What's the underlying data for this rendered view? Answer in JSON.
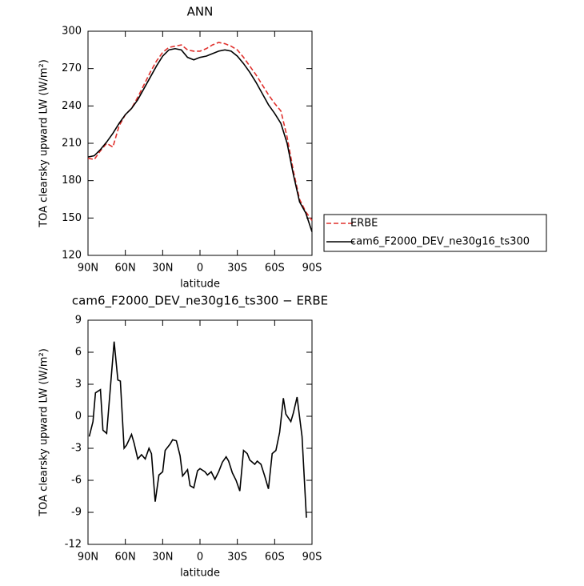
{
  "chart_data": [
    {
      "type": "line",
      "title": "ANN",
      "xlabel": "latitude",
      "ylabel": "TOA clearsky upward LW (W/m²)",
      "x": [
        90,
        85,
        80,
        75,
        70,
        65,
        60,
        55,
        50,
        45,
        40,
        35,
        30,
        25,
        20,
        15,
        10,
        5,
        0,
        -5,
        -10,
        -15,
        -20,
        -25,
        -30,
        -35,
        -40,
        -45,
        -50,
        -55,
        -60,
        -65,
        -70,
        -75,
        -80,
        -85,
        -90
      ],
      "series": [
        {
          "name": "ERBE",
          "color": "#e0302c",
          "dash": true,
          "values": [
            198,
            197,
            204,
            210,
            207,
            224,
            233,
            238,
            247,
            257,
            267,
            276,
            283,
            287,
            288,
            289,
            285,
            284,
            284,
            286,
            289,
            291,
            290,
            288,
            285,
            279,
            272,
            265,
            257,
            249,
            242,
            236,
            215,
            188,
            165,
            155,
            148
          ]
        },
        {
          "name": "cam6_F2000_DEV_ne30g16_ts300",
          "color": "#000000",
          "dash": false,
          "values": [
            199,
            200,
            205,
            211,
            218,
            226,
            233,
            238,
            245,
            254,
            263,
            272,
            280,
            285,
            286,
            285,
            279,
            277,
            279,
            280,
            282,
            284,
            285,
            284,
            280,
            274,
            267,
            259,
            250,
            241,
            234,
            226,
            210,
            185,
            163,
            154,
            139
          ]
        }
      ],
      "xlim": [
        90,
        -90
      ],
      "xticks": [
        {
          "value": 90,
          "label": "90N"
        },
        {
          "value": 60,
          "label": "60N"
        },
        {
          "value": 30,
          "label": "30N"
        },
        0,
        {
          "value": -30,
          "label": "30S"
        },
        {
          "value": -60,
          "label": "60S"
        },
        {
          "value": -90,
          "label": "90S"
        }
      ],
      "ylim": [
        120,
        300
      ],
      "yticks": [
        120,
        150,
        180,
        210,
        240,
        270,
        300
      ],
      "legend": "right"
    },
    {
      "type": "line",
      "title": "cam6_F2000_DEV_ne30g16_ts300 − ERBE",
      "xlabel": "latitude",
      "ylabel": "TOA clearsky upward LW (W/m²)",
      "x": [
        89,
        86,
        84,
        80,
        78,
        75,
        69,
        66,
        64,
        61,
        59,
        55,
        53,
        50,
        47,
        44,
        41,
        39,
        36,
        33,
        30,
        28,
        24,
        22,
        19,
        16,
        14,
        10,
        8,
        5,
        2,
        0,
        -4,
        -6,
        -9,
        -12,
        -15,
        -18,
        -21,
        -23,
        -26,
        -29,
        -32,
        -35,
        -38,
        -40,
        -44,
        -46,
        -49,
        -52,
        -55,
        -58,
        -61,
        -64,
        -67,
        -69,
        -73,
        -75,
        -78,
        -82,
        -85.5
      ],
      "series": [
        {
          "color": "#000000",
          "dash": false,
          "values": [
            -1.9,
            -0.5,
            2.2,
            2.5,
            -1.3,
            -1.6,
            7.0,
            3.4,
            3.3,
            -3.0,
            -2.7,
            -1.7,
            -2.5,
            -4.0,
            -3.6,
            -4.0,
            -3.0,
            -3.5,
            -8.0,
            -5.5,
            -5.2,
            -3.2,
            -2.6,
            -2.2,
            -2.3,
            -3.7,
            -5.6,
            -5.0,
            -6.5,
            -6.7,
            -5.1,
            -4.9,
            -5.2,
            -5.5,
            -5.2,
            -5.9,
            -5.2,
            -4.3,
            -3.8,
            -4.2,
            -5.3,
            -6.0,
            -7.0,
            -3.2,
            -3.5,
            -4.1,
            -4.5,
            -4.2,
            -4.5,
            -5.6,
            -6.8,
            -3.5,
            -3.2,
            -1.5,
            1.7,
            0.2,
            -0.5,
            0.3,
            1.8,
            -1.9,
            -9.5
          ]
        }
      ],
      "xlim": [
        90,
        -90
      ],
      "xticks": [
        {
          "value": 90,
          "label": "90N"
        },
        {
          "value": 60,
          "label": "60N"
        },
        {
          "value": 30,
          "label": "30N"
        },
        0,
        {
          "value": -30,
          "label": "30S"
        },
        {
          "value": -60,
          "label": "60S"
        },
        {
          "value": -90,
          "label": "90S"
        }
      ],
      "ylim": [
        -12,
        9
      ],
      "yticks": [
        -12,
        -9,
        -6,
        -3,
        0,
        3,
        6,
        9
      ]
    }
  ]
}
